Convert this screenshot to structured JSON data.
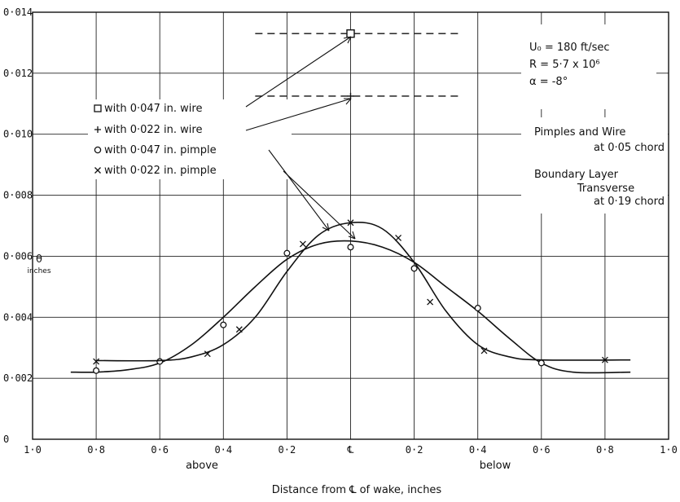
{
  "chart_data": {
    "type": "line",
    "xlabel": "Distance from ℄ of wake, inches",
    "ylabel": "θ",
    "ylabel_unit": "inches",
    "xlim": [
      -1.0,
      1.0
    ],
    "ylim": [
      0,
      0.014
    ],
    "grid": true,
    "x_ticks": [
      {
        "x": -1.0,
        "label": "1·0"
      },
      {
        "x": -0.8,
        "label": "0·8"
      },
      {
        "x": -0.6,
        "label": "0·6"
      },
      {
        "x": -0.4,
        "label": "0·4"
      },
      {
        "x": -0.2,
        "label": "0·2"
      },
      {
        "x": 0.0,
        "label": "℄"
      },
      {
        "x": 0.2,
        "label": "0·2"
      },
      {
        "x": 0.4,
        "label": "0·4"
      },
      {
        "x": 0.6,
        "label": "0·6"
      },
      {
        "x": 0.8,
        "label": "0·8"
      },
      {
        "x": 1.0,
        "label": "1·0"
      }
    ],
    "y_ticks": [
      {
        "y": 0,
        "label": "0"
      },
      {
        "y": 0.002,
        "label": "0·002"
      },
      {
        "y": 0.004,
        "label": "0·004"
      },
      {
        "y": 0.006,
        "label": "0·006"
      },
      {
        "y": 0.008,
        "label": "0·008"
      },
      {
        "y": 0.01,
        "label": "0·010"
      },
      {
        "y": 0.012,
        "label": "0·012"
      },
      {
        "y": 0.014,
        "label": "0·014"
      }
    ],
    "side_labels": {
      "above": "above",
      "below": "below"
    },
    "conditions": [
      "U₀ = 180 ft/sec",
      "R = 5·7 x 10⁶",
      "α = -8°"
    ],
    "notes": [
      "Pimples and Wire",
      "at 0·05 chord",
      "Boundary Layer",
      "Transverse",
      "at 0·19 chord"
    ],
    "series": [
      {
        "name": "with 0·047 in. wire",
        "marker": "square",
        "points": [
          [
            0.0,
            0.0133
          ]
        ],
        "level": {
          "value": 0.0133,
          "from": -0.3,
          "to": 0.35
        }
      },
      {
        "name": "with 0·022 in. wire",
        "marker": "plus",
        "points": [
          [
            0.0,
            0.01125
          ]
        ],
        "level": {
          "value": 0.01125,
          "from": -0.3,
          "to": 0.35
        }
      },
      {
        "name": "with 0·047 in. pimple",
        "marker": "circle",
        "points": [
          [
            -0.8,
            0.00225
          ],
          [
            -0.6,
            0.00255
          ],
          [
            -0.4,
            0.00375
          ],
          [
            -0.2,
            0.0061
          ],
          [
            0.0,
            0.0063
          ],
          [
            0.2,
            0.0056
          ],
          [
            0.4,
            0.0043
          ],
          [
            0.6,
            0.0025
          ]
        ],
        "curve": [
          [
            -0.88,
            0.0022
          ],
          [
            -0.8,
            0.0022
          ],
          [
            -0.7,
            0.00228
          ],
          [
            -0.6,
            0.0025
          ],
          [
            -0.5,
            0.0031
          ],
          [
            -0.4,
            0.004
          ],
          [
            -0.3,
            0.005
          ],
          [
            -0.2,
            0.0059
          ],
          [
            -0.1,
            0.0064
          ],
          [
            0.0,
            0.0065
          ],
          [
            0.1,
            0.0063
          ],
          [
            0.2,
            0.0058
          ],
          [
            0.3,
            0.005
          ],
          [
            0.4,
            0.0042
          ],
          [
            0.5,
            0.0033
          ],
          [
            0.6,
            0.0025
          ],
          [
            0.7,
            0.0022
          ],
          [
            0.88,
            0.0022
          ]
        ]
      },
      {
        "name": "with 0·022 in. pimple",
        "marker": "x",
        "points": [
          [
            -0.8,
            0.00255
          ],
          [
            -0.45,
            0.0028
          ],
          [
            -0.35,
            0.0036
          ],
          [
            -0.15,
            0.0064
          ],
          [
            0.0,
            0.0071
          ],
          [
            0.15,
            0.0066
          ],
          [
            0.25,
            0.0045
          ],
          [
            0.42,
            0.0029
          ],
          [
            0.8,
            0.0026
          ]
        ],
        "curve": [
          [
            -0.8,
            0.00258
          ],
          [
            -0.6,
            0.00258
          ],
          [
            -0.5,
            0.0027
          ],
          [
            -0.4,
            0.0031
          ],
          [
            -0.3,
            0.004
          ],
          [
            -0.2,
            0.0055
          ],
          [
            -0.1,
            0.0067
          ],
          [
            0.0,
            0.0071
          ],
          [
            0.1,
            0.0069
          ],
          [
            0.2,
            0.0058
          ],
          [
            0.3,
            0.0042
          ],
          [
            0.4,
            0.0031
          ],
          [
            0.5,
            0.0027
          ],
          [
            0.6,
            0.0026
          ],
          [
            0.88,
            0.0026
          ]
        ]
      }
    ]
  }
}
